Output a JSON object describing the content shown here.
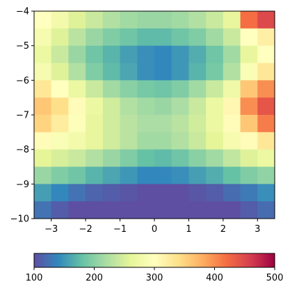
{
  "chart_data": {
    "type": "heatmap",
    "colormap": "Spectral_r",
    "x": [
      -3.25,
      -2.75,
      -2.25,
      -1.75,
      -1.25,
      -0.75,
      -0.25,
      0.25,
      0.75,
      1.25,
      1.75,
      2.25,
      2.75,
      3.25
    ],
    "y": [
      -4.25,
      -4.75,
      -5.25,
      -5.75,
      -6.25,
      -6.75,
      -7.25,
      -7.75,
      -8.25,
      -8.75,
      -9.25,
      -9.75
    ],
    "z": [
      [
        300,
        280,
        255,
        240,
        225,
        215,
        210,
        210,
        215,
        225,
        240,
        265,
        420,
        450
      ],
      [
        285,
        255,
        230,
        210,
        195,
        185,
        175,
        175,
        185,
        195,
        215,
        240,
        300,
        320
      ],
      [
        270,
        240,
        210,
        185,
        170,
        155,
        145,
        140,
        150,
        165,
        185,
        215,
        265,
        300
      ],
      [
        285,
        255,
        225,
        195,
        175,
        160,
        145,
        140,
        150,
        170,
        190,
        225,
        290,
        330
      ],
      [
        330,
        300,
        270,
        240,
        215,
        200,
        190,
        185,
        195,
        215,
        240,
        275,
        360,
        400
      ],
      [
        360,
        340,
        305,
        270,
        245,
        225,
        215,
        210,
        220,
        240,
        270,
        310,
        400,
        440
      ],
      [
        350,
        325,
        295,
        265,
        245,
        230,
        220,
        220,
        230,
        245,
        270,
        305,
        360,
        410
      ],
      [
        305,
        290,
        280,
        265,
        245,
        230,
        215,
        215,
        225,
        240,
        260,
        285,
        305,
        330
      ],
      [
        260,
        250,
        240,
        225,
        210,
        195,
        180,
        175,
        185,
        200,
        215,
        235,
        255,
        270
      ],
      [
        210,
        195,
        185,
        170,
        160,
        150,
        140,
        140,
        145,
        155,
        165,
        180,
        195,
        205
      ],
      [
        155,
        140,
        125,
        115,
        110,
        105,
        100,
        100,
        100,
        105,
        110,
        120,
        130,
        145
      ],
      [
        125,
        110,
        100,
        100,
        100,
        100,
        100,
        100,
        100,
        100,
        100,
        100,
        110,
        120
      ]
    ],
    "xlim": [
      -3.5,
      3.5
    ],
    "ylim": [
      -10,
      -4
    ],
    "xticks": [
      -3,
      -2,
      -1,
      0,
      1,
      2,
      3
    ],
    "xtick_labels": [
      "−3",
      "−2",
      "−1",
      "0",
      "1",
      "2",
      "3"
    ],
    "yticks": [
      -4,
      -5,
      -6,
      -7,
      -8,
      -9,
      -10
    ],
    "ytick_labels": [
      "−4",
      "−5",
      "−6",
      "−7",
      "−8",
      "−9",
      "−10"
    ],
    "colorbar": {
      "min": 100,
      "max": 500,
      "ticks": [
        100,
        200,
        300,
        400,
        500
      ],
      "tick_labels": [
        "100",
        "200",
        "300",
        "400",
        "500"
      ],
      "orientation": "horizontal",
      "placement": "bottom"
    },
    "title": "",
    "xlabel": "",
    "ylabel": "",
    "grid": false
  }
}
